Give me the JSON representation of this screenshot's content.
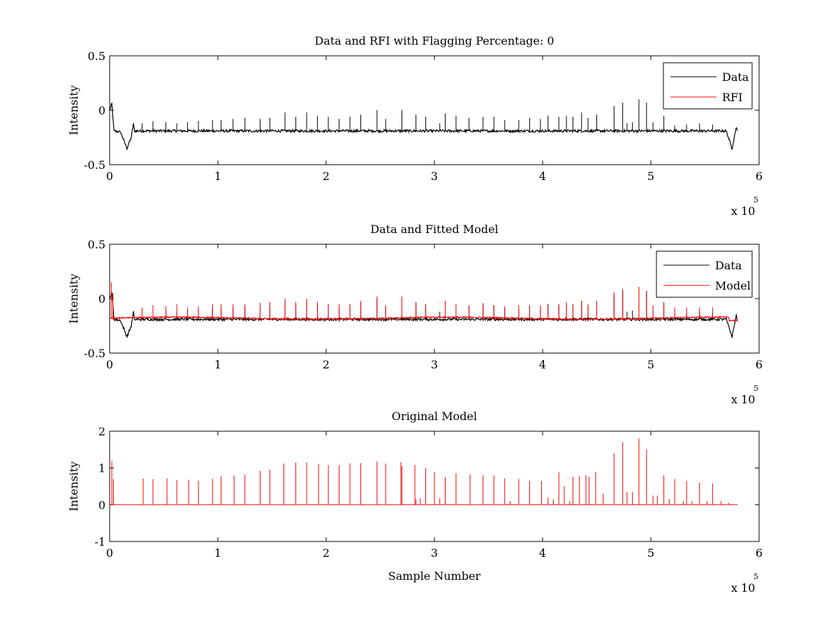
{
  "chart_data": [
    {
      "type": "line",
      "title": "Data and RFI with Flagging Percentage: 0",
      "xlabel": "",
      "ylabel": "Intensity",
      "xlim": [
        0,
        600000
      ],
      "ylim": [
        -0.5,
        0.5
      ],
      "x_ticks": [
        "0",
        "1",
        "2",
        "3",
        "4",
        "5",
        "6"
      ],
      "y_ticks": [
        "-0.5",
        "0",
        "0.5"
      ],
      "x_multiplier": {
        "base": "x 10",
        "exponent": "5"
      },
      "grid": false,
      "legend": {
        "position": "top-right",
        "entries": [
          {
            "label": "Data",
            "color": "#000000"
          },
          {
            "label": "RFI",
            "color": "#ff0000"
          }
        ]
      },
      "series": [
        {
          "name": "Data",
          "color": "#000000",
          "baseline": -0.19,
          "dip_points": [
            [
              0,
              0.0
            ],
            [
              2000,
              0.06
            ],
            [
              4000,
              -0.19
            ],
            [
              10000,
              -0.2
            ],
            [
              16000,
              -0.35
            ],
            [
              20000,
              -0.25
            ],
            [
              22000,
              -0.12
            ],
            [
              23000,
              -0.2
            ],
            [
              570000,
              -0.2
            ],
            [
              575000,
              -0.35
            ],
            [
              579000,
              -0.15
            ],
            [
              580000,
              -0.2
            ]
          ],
          "spikes": [
            [
              30000,
              -0.12
            ],
            [
              40000,
              -0.1
            ],
            [
              52000,
              -0.11
            ],
            [
              62000,
              -0.12
            ],
            [
              72000,
              -0.11
            ],
            [
              82000,
              -0.1
            ],
            [
              95000,
              -0.09
            ],
            [
              103000,
              -0.09
            ],
            [
              114000,
              -0.08
            ],
            [
              125000,
              -0.07
            ],
            [
              139000,
              -0.08
            ],
            [
              148000,
              -0.07
            ],
            [
              162000,
              -0.02
            ],
            [
              172000,
              -0.06
            ],
            [
              182000,
              -0.02
            ],
            [
              192000,
              -0.05
            ],
            [
              202000,
              -0.06
            ],
            [
              212000,
              -0.08
            ],
            [
              222000,
              -0.06
            ],
            [
              232000,
              -0.04
            ],
            [
              247000,
              0.0
            ],
            [
              255000,
              -0.08
            ],
            [
              270000,
              0.0
            ],
            [
              283000,
              -0.04
            ],
            [
              292000,
              -0.06
            ],
            [
              305000,
              -0.12
            ],
            [
              310000,
              -0.03
            ],
            [
              320000,
              -0.05
            ],
            [
              332000,
              -0.07
            ],
            [
              345000,
              -0.06
            ],
            [
              355000,
              -0.06
            ],
            [
              365000,
              -0.09
            ],
            [
              378000,
              -0.09
            ],
            [
              388000,
              -0.07
            ],
            [
              398000,
              -0.08
            ],
            [
              405000,
              -0.05
            ],
            [
              415000,
              -0.06
            ],
            [
              422000,
              -0.05
            ],
            [
              428000,
              -0.06
            ],
            [
              436000,
              -0.02
            ],
            [
              442000,
              -0.07
            ],
            [
              450000,
              -0.04
            ],
            [
              466000,
              0.04
            ],
            [
              474000,
              0.07
            ],
            [
              478000,
              -0.12
            ],
            [
              483000,
              -0.11
            ],
            [
              489000,
              0.1
            ],
            [
              496000,
              0.07
            ],
            [
              502000,
              -0.11
            ],
            [
              512000,
              -0.05
            ],
            [
              522000,
              -0.14
            ],
            [
              533000,
              -0.13
            ],
            [
              545000,
              -0.12
            ],
            [
              557000,
              -0.13
            ]
          ]
        }
      ]
    },
    {
      "type": "line",
      "title": "Data and Fitted Model",
      "xlabel": "",
      "ylabel": "Intensity",
      "xlim": [
        0,
        600000
      ],
      "ylim": [
        -0.5,
        0.5
      ],
      "x_ticks": [
        "0",
        "1",
        "2",
        "3",
        "4",
        "5",
        "6"
      ],
      "y_ticks": [
        "-0.5",
        "0",
        "0.5"
      ],
      "x_multiplier": {
        "base": "x 10",
        "exponent": "5"
      },
      "grid": false,
      "legend": {
        "position": "top-right",
        "entries": [
          {
            "label": "Data",
            "color": "#000000"
          },
          {
            "label": "Model",
            "color": "#ff0000"
          }
        ]
      },
      "series": [
        {
          "name": "Data",
          "color": "#000000",
          "baseline": -0.19
        },
        {
          "name": "Model",
          "color": "#ff0000",
          "baseline": -0.18,
          "spikes": [
            [
              1500,
              0.15
            ],
            [
              3000,
              0.05
            ],
            [
              30000,
              -0.08
            ],
            [
              40000,
              -0.06
            ],
            [
              52000,
              -0.07
            ],
            [
              62000,
              -0.05
            ],
            [
              72000,
              -0.08
            ],
            [
              82000,
              -0.07
            ],
            [
              95000,
              -0.05
            ],
            [
              103000,
              -0.05
            ],
            [
              114000,
              -0.05
            ],
            [
              125000,
              -0.05
            ],
            [
              139000,
              -0.04
            ],
            [
              148000,
              -0.03
            ],
            [
              162000,
              0.0
            ],
            [
              172000,
              -0.03
            ],
            [
              182000,
              0.0
            ],
            [
              192000,
              -0.03
            ],
            [
              202000,
              -0.05
            ],
            [
              212000,
              -0.05
            ],
            [
              222000,
              -0.05
            ],
            [
              232000,
              -0.02
            ],
            [
              247000,
              0.02
            ],
            [
              255000,
              -0.06
            ],
            [
              270000,
              0.02
            ],
            [
              283000,
              -0.03
            ],
            [
              292000,
              -0.05
            ],
            [
              310000,
              -0.02
            ],
            [
              320000,
              -0.05
            ],
            [
              332000,
              -0.06
            ],
            [
              345000,
              -0.04
            ],
            [
              355000,
              -0.06
            ],
            [
              365000,
              -0.07
            ],
            [
              378000,
              -0.06
            ],
            [
              388000,
              -0.06
            ],
            [
              398000,
              -0.06
            ],
            [
              405000,
              -0.05
            ],
            [
              415000,
              -0.05
            ],
            [
              422000,
              -0.03
            ],
            [
              428000,
              -0.05
            ],
            [
              436000,
              -0.02
            ],
            [
              442000,
              -0.05
            ],
            [
              450000,
              -0.02
            ],
            [
              466000,
              0.06
            ],
            [
              474000,
              0.09
            ],
            [
              489000,
              0.11
            ],
            [
              496000,
              0.07
            ],
            [
              502000,
              -0.06
            ],
            [
              512000,
              -0.03
            ],
            [
              522000,
              -0.08
            ],
            [
              533000,
              -0.08
            ],
            [
              545000,
              -0.08
            ],
            [
              557000,
              -0.08
            ]
          ]
        }
      ]
    },
    {
      "type": "line",
      "title": "Original Model",
      "xlabel": "Sample Number",
      "ylabel": "Intensity",
      "xlim": [
        0,
        600000
      ],
      "ylim": [
        -1,
        2
      ],
      "x_ticks": [
        "0",
        "1",
        "2",
        "3",
        "4",
        "5",
        "6"
      ],
      "y_ticks": [
        "-1",
        "0",
        "1",
        "2"
      ],
      "x_multiplier": {
        "base": "x 10",
        "exponent": "5"
      },
      "grid": false,
      "series": [
        {
          "name": "",
          "color": "#ff0000",
          "baseline": 0.0,
          "spikes": [
            [
              2000,
              1.2
            ],
            [
              3500,
              0.7
            ],
            [
              31000,
              0.72
            ],
            [
              40000,
              0.7
            ],
            [
              53000,
              0.72
            ],
            [
              62000,
              0.67
            ],
            [
              73000,
              0.68
            ],
            [
              82000,
              0.65
            ],
            [
              95000,
              0.7
            ],
            [
              103000,
              0.78
            ],
            [
              115000,
              0.8
            ],
            [
              125000,
              0.82
            ],
            [
              139000,
              0.92
            ],
            [
              148000,
              0.95
            ],
            [
              161000,
              1.12
            ],
            [
              172000,
              1.15
            ],
            [
              182000,
              1.15
            ],
            [
              193000,
              1.1
            ],
            [
              202000,
              1.08
            ],
            [
              212000,
              1.08
            ],
            [
              222000,
              1.13
            ],
            [
              232000,
              1.13
            ],
            [
              247000,
              1.18
            ],
            [
              255000,
              1.12
            ],
            [
              269000,
              1.16
            ],
            [
              270000,
              1.05
            ],
            [
              282000,
              1.08
            ],
            [
              283000,
              0.15
            ],
            [
              287000,
              0.18
            ],
            [
              292000,
              1.0
            ],
            [
              300000,
              0.9
            ],
            [
              305000,
              0.18
            ],
            [
              310000,
              0.75
            ],
            [
              320000,
              0.85
            ],
            [
              333000,
              0.82
            ],
            [
              345000,
              0.8
            ],
            [
              355000,
              0.8
            ],
            [
              365000,
              0.72
            ],
            [
              370000,
              0.1
            ],
            [
              378000,
              0.7
            ],
            [
              388000,
              0.65
            ],
            [
              399000,
              0.65
            ],
            [
              405000,
              0.2
            ],
            [
              410000,
              0.15
            ],
            [
              415000,
              0.88
            ],
            [
              420000,
              0.5
            ],
            [
              425000,
              0.1
            ],
            [
              428000,
              0.76
            ],
            [
              434000,
              0.78
            ],
            [
              440000,
              0.8
            ],
            [
              443000,
              0.76
            ],
            [
              449000,
              0.9
            ],
            [
              456000,
              0.3
            ],
            [
              466000,
              1.4
            ],
            [
              474000,
              1.7
            ],
            [
              478000,
              0.35
            ],
            [
              483000,
              0.35
            ],
            [
              489000,
              1.8
            ],
            [
              496000,
              1.5
            ],
            [
              502000,
              0.25
            ],
            [
              506000,
              0.25
            ],
            [
              512000,
              0.8
            ],
            [
              517000,
              0.15
            ],
            [
              522000,
              0.7
            ],
            [
              530000,
              0.1
            ],
            [
              533000,
              0.65
            ],
            [
              538000,
              0.1
            ],
            [
              545000,
              0.6
            ],
            [
              552000,
              0.1
            ],
            [
              557000,
              0.58
            ],
            [
              565000,
              0.1
            ],
            [
              572000,
              0.05
            ]
          ]
        }
      ]
    }
  ]
}
